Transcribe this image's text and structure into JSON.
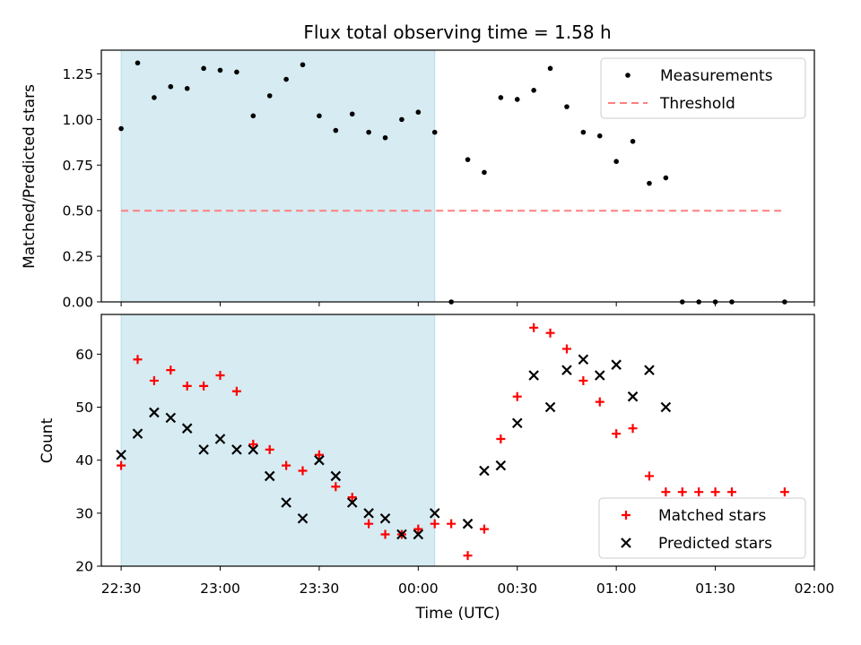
{
  "title": "Flux total observing time = 1.58 h",
  "chart_data": [
    {
      "type": "scatter",
      "ylabel": "Matched/Predicted stars",
      "xlim": [
        "22:24",
        "02:00"
      ],
      "ylim": [
        0.0,
        1.38
      ],
      "x_ticks": [
        "22:30",
        "23:00",
        "23:30",
        "00:00",
        "00:30",
        "01:00",
        "01:30",
        "02:00"
      ],
      "y_ticks": [
        "0.00",
        "0.25",
        "0.50",
        "0.75",
        "1.00",
        "1.25"
      ],
      "shaded_span": {
        "start": "22:30",
        "end": "00:05",
        "color": "#add8e6"
      },
      "legend_position": "upper right",
      "series": [
        {
          "name": "Measurements",
          "marker": "dot",
          "color": "#000000",
          "points": [
            [
              "22:30",
              0.95
            ],
            [
              "22:35",
              1.31
            ],
            [
              "22:40",
              1.12
            ],
            [
              "22:45",
              1.18
            ],
            [
              "22:50",
              1.17
            ],
            [
              "22:55",
              1.28
            ],
            [
              "23:00",
              1.27
            ],
            [
              "23:05",
              1.26
            ],
            [
              "23:10",
              1.02
            ],
            [
              "23:15",
              1.13
            ],
            [
              "23:20",
              1.22
            ],
            [
              "23:25",
              1.3
            ],
            [
              "23:30",
              1.02
            ],
            [
              "23:35",
              0.94
            ],
            [
              "23:40",
              1.03
            ],
            [
              "23:45",
              0.93
            ],
            [
              "23:50",
              0.9
            ],
            [
              "23:55",
              1.0
            ],
            [
              "00:00",
              1.04
            ],
            [
              "00:05",
              0.93
            ],
            [
              "00:10",
              0.0
            ],
            [
              "00:15",
              0.78
            ],
            [
              "00:20",
              0.71
            ],
            [
              "00:25",
              1.12
            ],
            [
              "00:30",
              1.11
            ],
            [
              "00:35",
              1.16
            ],
            [
              "00:40",
              1.28
            ],
            [
              "00:45",
              1.07
            ],
            [
              "00:50",
              0.93
            ],
            [
              "00:55",
              0.91
            ],
            [
              "01:00",
              0.77
            ],
            [
              "01:05",
              0.88
            ],
            [
              "01:10",
              0.65
            ],
            [
              "01:15",
              0.68
            ],
            [
              "01:20",
              0.0
            ],
            [
              "01:25",
              0.0
            ],
            [
              "01:30",
              0.0
            ],
            [
              "01:35",
              0.0
            ],
            [
              "01:51",
              0.0
            ]
          ]
        },
        {
          "name": "Threshold",
          "line": "dashed",
          "color": "#ff7f7f",
          "points": [
            [
              "22:30",
              0.5
            ],
            [
              "01:51",
              0.5
            ]
          ]
        }
      ]
    },
    {
      "type": "scatter",
      "xlabel": "Time (UTC)",
      "ylabel": "Count",
      "xlim": [
        "22:24",
        "02:00"
      ],
      "ylim": [
        20,
        67.5
      ],
      "x_ticks": [
        "22:30",
        "23:00",
        "23:30",
        "00:00",
        "00:30",
        "01:00",
        "01:30",
        "02:00"
      ],
      "y_ticks": [
        "20",
        "30",
        "40",
        "50",
        "60"
      ],
      "shaded_span": {
        "start": "22:30",
        "end": "00:05",
        "color": "#add8e6"
      },
      "legend_position": "lower right",
      "series": [
        {
          "name": "Matched stars",
          "marker": "plus",
          "color": "#ff0000",
          "points": [
            [
              "22:30",
              39
            ],
            [
              "22:35",
              59
            ],
            [
              "22:40",
              55
            ],
            [
              "22:45",
              57
            ],
            [
              "22:50",
              54
            ],
            [
              "22:55",
              54
            ],
            [
              "23:00",
              56
            ],
            [
              "23:05",
              53
            ],
            [
              "23:10",
              43
            ],
            [
              "23:15",
              42
            ],
            [
              "23:20",
              39
            ],
            [
              "23:25",
              38
            ],
            [
              "23:30",
              41
            ],
            [
              "23:35",
              35
            ],
            [
              "23:40",
              33
            ],
            [
              "23:45",
              28
            ],
            [
              "23:50",
              26
            ],
            [
              "23:55",
              26
            ],
            [
              "00:00",
              27
            ],
            [
              "00:05",
              28
            ],
            [
              "00:10",
              28
            ],
            [
              "00:15",
              22
            ],
            [
              "00:20",
              27
            ],
            [
              "00:25",
              44
            ],
            [
              "00:30",
              52
            ],
            [
              "00:35",
              65
            ],
            [
              "00:40",
              64
            ],
            [
              "00:45",
              61
            ],
            [
              "00:50",
              55
            ],
            [
              "00:55",
              51
            ],
            [
              "01:00",
              45
            ],
            [
              "01:05",
              46
            ],
            [
              "01:10",
              37
            ],
            [
              "01:15",
              34
            ],
            [
              "01:20",
              34
            ],
            [
              "01:25",
              34
            ],
            [
              "01:30",
              34
            ],
            [
              "01:35",
              34
            ],
            [
              "01:51",
              34
            ]
          ]
        },
        {
          "name": "Predicted stars",
          "marker": "x",
          "color": "#000000",
          "points": [
            [
              "22:30",
              41
            ],
            [
              "22:35",
              45
            ],
            [
              "22:40",
              49
            ],
            [
              "22:45",
              48
            ],
            [
              "22:50",
              46
            ],
            [
              "22:55",
              42
            ],
            [
              "23:00",
              44
            ],
            [
              "23:05",
              42
            ],
            [
              "23:10",
              42
            ],
            [
              "23:15",
              37
            ],
            [
              "23:20",
              32
            ],
            [
              "23:25",
              29
            ],
            [
              "23:30",
              40
            ],
            [
              "23:35",
              37
            ],
            [
              "23:40",
              32
            ],
            [
              "23:45",
              30
            ],
            [
              "23:50",
              29
            ],
            [
              "23:55",
              26
            ],
            [
              "00:00",
              26
            ],
            [
              "00:05",
              30
            ],
            [
              "00:15",
              28
            ],
            [
              "00:20",
              38
            ],
            [
              "00:25",
              39
            ],
            [
              "00:30",
              47
            ],
            [
              "00:35",
              56
            ],
            [
              "00:40",
              50
            ],
            [
              "00:45",
              57
            ],
            [
              "00:50",
              59
            ],
            [
              "00:55",
              56
            ],
            [
              "01:00",
              58
            ],
            [
              "01:05",
              52
            ],
            [
              "01:10",
              57
            ],
            [
              "01:15",
              50
            ]
          ]
        }
      ]
    }
  ]
}
